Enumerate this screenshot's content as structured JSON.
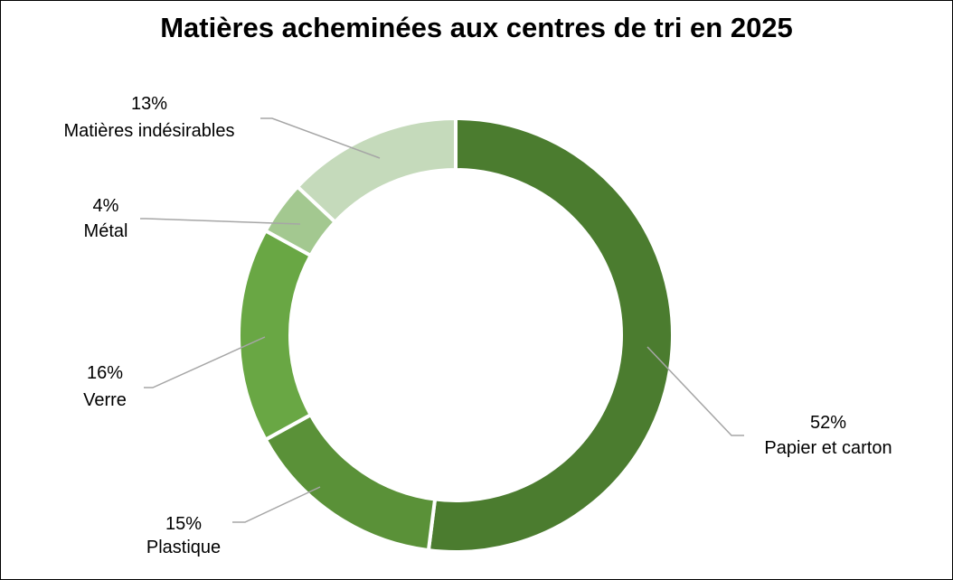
{
  "chart_data": {
    "type": "pie",
    "variant": "donut",
    "title": "Matières acheminées aux centres de tri en 2025",
    "legend": "none",
    "slices": [
      {
        "label": "Papier et carton",
        "value": 52,
        "value_text": "52%",
        "color": "#4b7c2f"
      },
      {
        "label": "Plastique",
        "value": 15,
        "value_text": "15%",
        "color": "#5a9138"
      },
      {
        "label": "Verre",
        "value": 16,
        "value_text": "16%",
        "color": "#69a744"
      },
      {
        "label": "Métal",
        "value": 4,
        "value_text": "4%",
        "color": "#a3c890"
      },
      {
        "label": "Matières indésirables",
        "value": 13,
        "value_text": "13%",
        "color": "#c5dabb"
      }
    ]
  }
}
